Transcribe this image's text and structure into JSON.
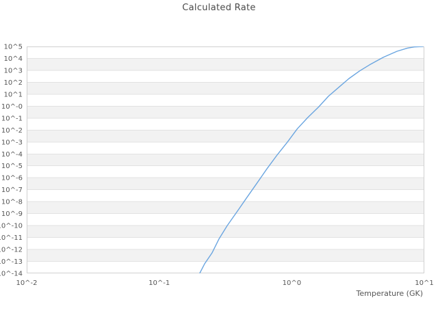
{
  "chart_data": {
    "type": "line",
    "title": "Calculated Rate",
    "xlabel": "Temperature (GK)",
    "ylabel": "",
    "x_scale": "log10",
    "y_scale": "log10",
    "xlog10_range": [
      -2,
      1
    ],
    "ylog10_range": [
      -14,
      5
    ],
    "x_tick_labels": [
      "10^-2",
      "10^-1",
      "10^0",
      "10^1"
    ],
    "y_tick_labels": [
      "10^5",
      "10^4",
      "10^3",
      "10^2",
      "10^1",
      "10^-0",
      "10^-1",
      "10^-2",
      "10^-3",
      "10^-4",
      "10^-5",
      "10^-6",
      "10^-7",
      "10^-8",
      "10^-9",
      "10^-10",
      "10^-11",
      "10^-12",
      "10^-13",
      "10^-14"
    ],
    "grid": "horizontal-only, alternating shaded decade bands",
    "legend": false,
    "series": [
      {
        "name": "calculated-rate",
        "color": "#6aa5e0",
        "x_temperature_gk": [
          0.197,
          0.202,
          0.22,
          0.25,
          0.283,
          0.326,
          0.4,
          0.455,
          0.55,
          0.65,
          0.78,
          0.927,
          1.1,
          1.32,
          1.6,
          1.89,
          2.3,
          2.7,
          3.25,
          3.86,
          4.9,
          6.23,
          7.45,
          8.39,
          9.8
        ],
        "y_log10_rate": [
          -14.35,
          -14.0,
          -13.2,
          -12.3,
          -11.1,
          -10.0,
          -8.6,
          -7.7,
          -6.4,
          -5.24,
          -4.05,
          -3.01,
          -1.9,
          -0.95,
          -0.05,
          0.83,
          1.65,
          2.31,
          2.95,
          3.46,
          4.09,
          4.6,
          4.86,
          4.96,
          5.0
        ]
      }
    ],
    "colors": {
      "band": "#f2f2f2",
      "gridline": "#e2e2e2",
      "border": "#d0d0d0",
      "curve": "#6aa5e0",
      "tick_text": "#555555",
      "title_text": "#4a4a4a"
    }
  }
}
